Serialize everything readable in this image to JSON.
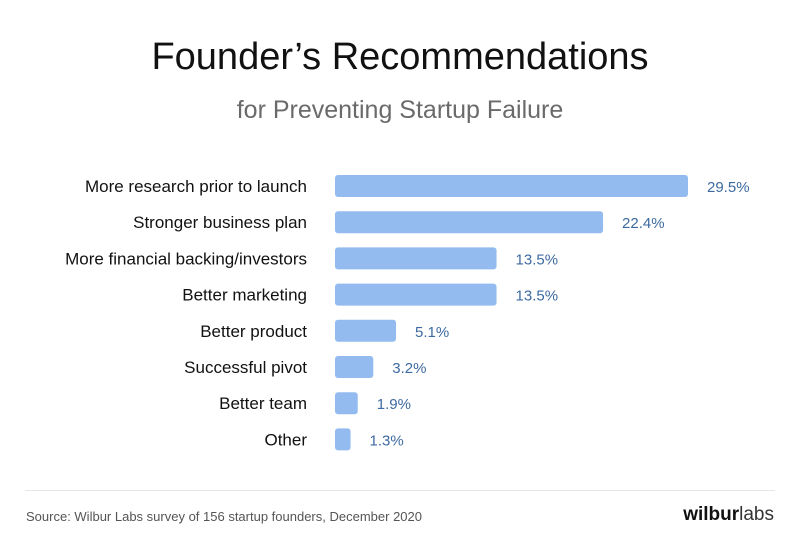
{
  "chart_data": {
    "type": "bar",
    "orientation": "horizontal",
    "title": "Founder’s Recommendations",
    "subtitle": "for Preventing Startup Failure",
    "categories": [
      "More research prior to launch",
      "Stronger business plan",
      "More financial backing/investors",
      "Better marketing",
      "Better product",
      "Successful pivot",
      "Better team",
      "Other"
    ],
    "values": [
      29.5,
      22.4,
      13.5,
      13.5,
      5.1,
      3.2,
      1.9,
      1.3
    ],
    "value_labels": [
      "29.5%",
      "22.4%",
      "13.5%",
      "13.5%",
      "5.1%",
      "3.2%",
      "1.9%",
      "1.3%"
    ],
    "xlabel": "",
    "ylabel": "",
    "xlim": [
      0,
      29.5
    ],
    "grid": false,
    "bar_color": "#93bbf0",
    "label_color": "#3d6aa0"
  },
  "footer": {
    "source": "Source: Wilbur Labs survey of 156 startup founders, December 2020",
    "logo_bold": "wilbur",
    "logo_light": "labs"
  }
}
